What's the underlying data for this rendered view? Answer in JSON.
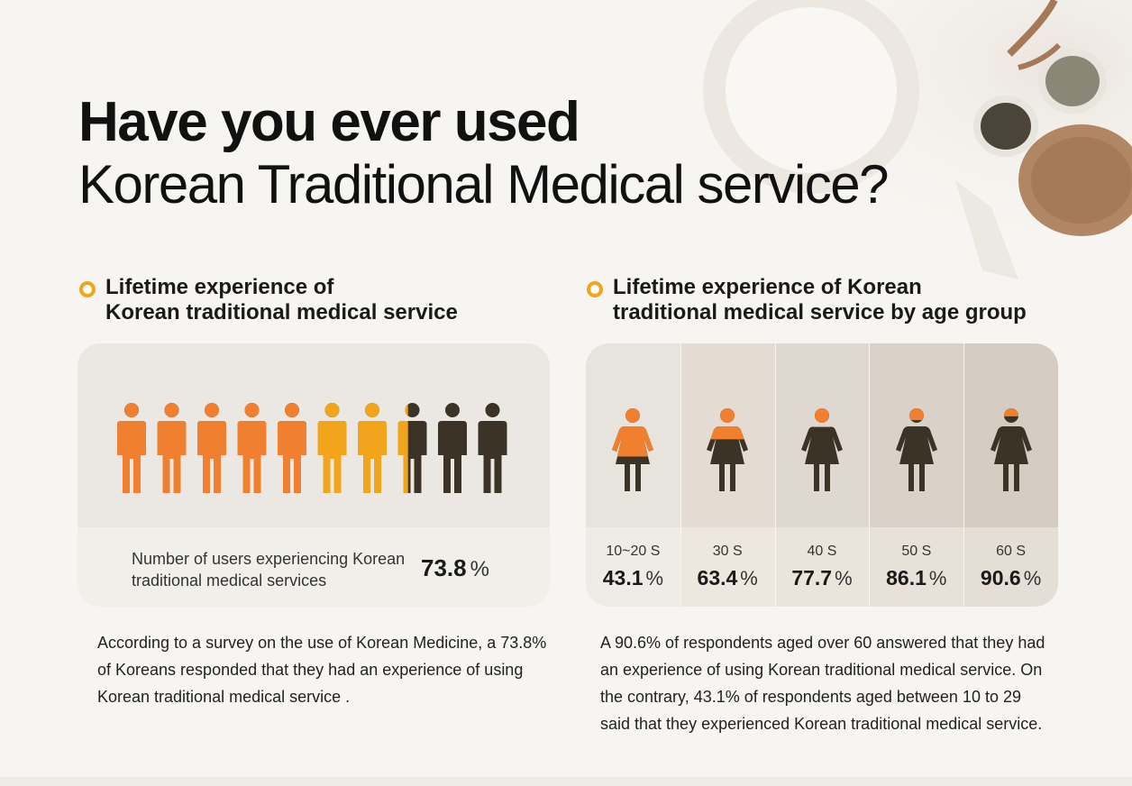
{
  "title": {
    "line1": "Have you ever used",
    "line2": "Korean Traditional Medical service?"
  },
  "left_section": {
    "heading_line1": "Lifetime experience of",
    "heading_line2": "Korean traditional medical service",
    "people_icon_count": 10,
    "filled_fraction": 0.738,
    "users_label": "Number of users experiencing Korean traditional medical services",
    "value": "73.8",
    "unit": "%",
    "description": "According to a survey on the use of Korean Medicine, a 73.8% of Koreans responded that they had an experience of using Korean traditional medical service ."
  },
  "right_section": {
    "heading_line1": "Lifetime experience of Korean",
    "heading_line2": "traditional medical service by age group",
    "age_groups": [
      {
        "label": "10~20 S",
        "value": "43.1",
        "unit": "%",
        "fraction": 0.431
      },
      {
        "label": "30 S",
        "value": "63.4",
        "unit": "%",
        "fraction": 0.634
      },
      {
        "label": "40 S",
        "value": "77.7",
        "unit": "%",
        "fraction": 0.777
      },
      {
        "label": "50 S",
        "value": "86.1",
        "unit": "%",
        "fraction": 0.861
      },
      {
        "label": "60 S",
        "value": "90.6",
        "unit": "%",
        "fraction": 0.906
      }
    ],
    "description": "A 90.6% of respondents aged over 60 answered that they had an experience of using Korean traditional medical service. On the contrary, 43.1% of respondents aged between 10 to 29 said that they experienced Korean traditional medical service."
  },
  "colors": {
    "accent_orange": "#f08030",
    "accent_amber": "#f2a51a",
    "dark_figure": "#3b3326"
  }
}
